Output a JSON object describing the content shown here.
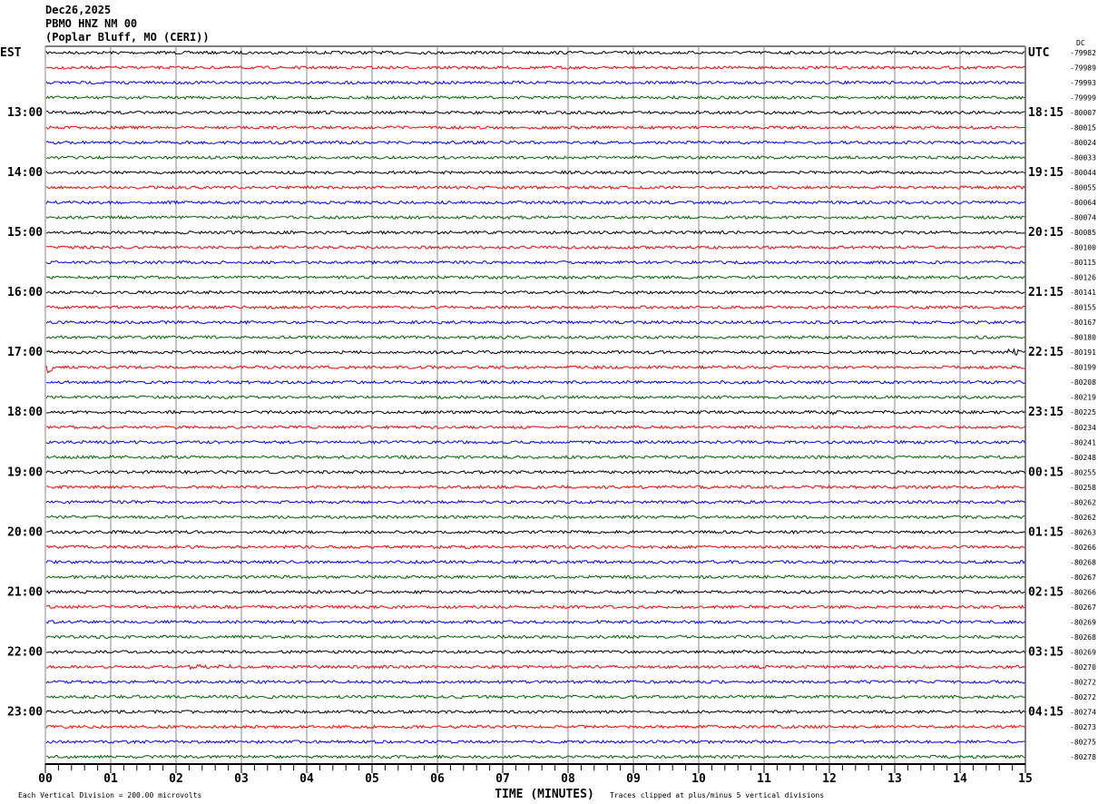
{
  "header": {
    "date": "Dec26,2025",
    "station": "PBMO HNZ NM 00",
    "location": "(Poplar Bluff, MO (CERI))"
  },
  "chart_data": {
    "type": "line",
    "title": "",
    "left_timezone": "EST",
    "right_timezone": "UTC",
    "dc_label": "DC",
    "left_hour_labels": [
      "EST",
      "13:00",
      "14:00",
      "15:00",
      "16:00",
      "17:00",
      "18:00",
      "19:00",
      "20:00",
      "21:00",
      "22:00",
      "23:00"
    ],
    "right_hour_labels": [
      "UTC",
      "18:15",
      "19:15",
      "20:15",
      "21:15",
      "22:15",
      "23:15",
      "00:15",
      "01:15",
      "02:15",
      "03:15",
      "04:15"
    ],
    "trace_colors": [
      "#000000",
      "#ff0000",
      "#0000ff",
      "#006400"
    ],
    "dc_offsets": [
      -79982,
      -79989,
      -79993,
      -79999,
      -80007,
      -80015,
      -80024,
      -80033,
      -80044,
      -80055,
      -80064,
      -80074,
      -80085,
      -80100,
      -80115,
      -80126,
      -80141,
      -80155,
      -80167,
      -80180,
      -80191,
      -80199,
      -80208,
      -80219,
      -80225,
      -80234,
      -80241,
      -80248,
      -80255,
      -80258,
      -80262,
      -80262,
      -80263,
      -80266,
      -80268,
      -80267,
      -80266,
      -80267,
      -80269,
      -80268,
      -80269,
      -80270,
      -80272,
      -80272,
      -80274,
      -80273,
      -80275,
      -80278
    ],
    "x_ticks": [
      "00",
      "01",
      "02",
      "03",
      "04",
      "05",
      "06",
      "07",
      "08",
      "09",
      "10",
      "11",
      "12",
      "13",
      "14",
      "15"
    ],
    "xlim": [
      0,
      15
    ],
    "xlabel": "TIME (MINUTES)",
    "scale_note": "Each Vertical Division =  200.00 microvolts",
    "clip_note": "Traces clipped at plus/minus 5 vertical divisions",
    "grid": true
  }
}
